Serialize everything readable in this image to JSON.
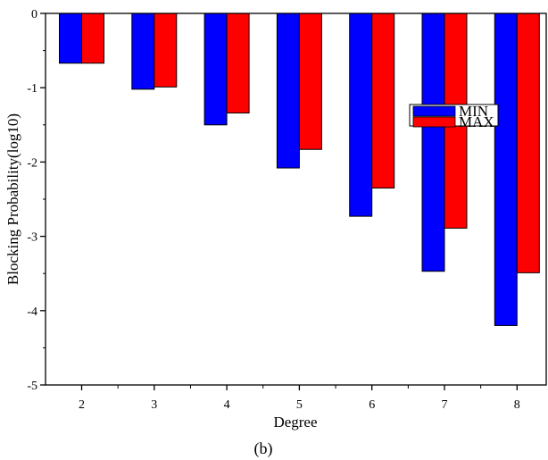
{
  "chart_data": {
    "type": "bar",
    "title": "",
    "caption": "(b)",
    "xlabel": "Degree",
    "ylabel": "Blocking Probability(log10)",
    "categories": [
      "2",
      "3",
      "4",
      "5",
      "6",
      "7",
      "8"
    ],
    "ylim": [
      -5,
      0
    ],
    "yticks": [
      0,
      -1,
      -2,
      -3,
      -4,
      -5
    ],
    "ytick_labels": [
      "0",
      "-1",
      "-2",
      "-3",
      "-4",
      "-5"
    ],
    "grid": false,
    "legend_position": "top-right",
    "series": [
      {
        "name": "MIN",
        "color": "#0000ff",
        "values": [
          -0.67,
          -1.02,
          -1.5,
          -2.08,
          -2.73,
          -3.47,
          -4.2
        ]
      },
      {
        "name": "MAX",
        "color": "#ff0000",
        "values": [
          -0.67,
          -0.99,
          -1.34,
          -1.83,
          -2.35,
          -2.89,
          -3.49
        ]
      }
    ]
  }
}
